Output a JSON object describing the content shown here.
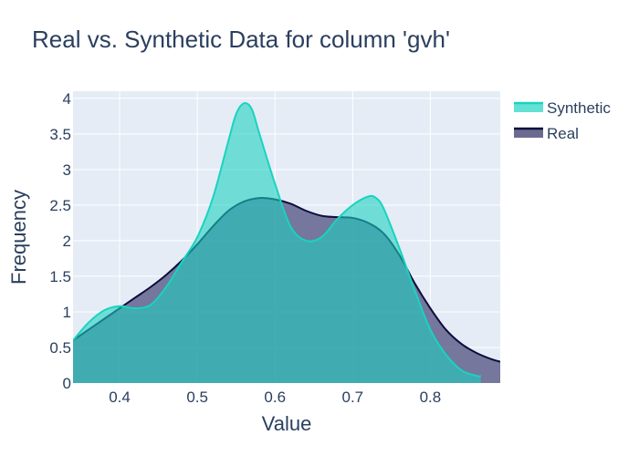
{
  "chart_data": {
    "type": "area",
    "title": "Real vs. Synthetic Data for column 'gvh'",
    "xlabel": "Value",
    "ylabel": "Frequency",
    "xlim": [
      0.34,
      0.89
    ],
    "ylim": [
      0,
      4.1
    ],
    "x_ticks": [
      {
        "value": 0.4,
        "label": "0.4"
      },
      {
        "value": 0.5,
        "label": "0.5"
      },
      {
        "value": 0.6,
        "label": "0.6"
      },
      {
        "value": 0.7,
        "label": "0.7"
      },
      {
        "value": 0.8,
        "label": "0.8"
      }
    ],
    "y_ticks": [
      {
        "value": 0,
        "label": "0"
      },
      {
        "value": 0.5,
        "label": "0.5"
      },
      {
        "value": 1,
        "label": "1"
      },
      {
        "value": 1.5,
        "label": "1.5"
      },
      {
        "value": 2,
        "label": "2"
      },
      {
        "value": 2.5,
        "label": "2.5"
      },
      {
        "value": 3,
        "label": "3"
      },
      {
        "value": 3.5,
        "label": "3.5"
      },
      {
        "value": 4,
        "label": "4"
      }
    ],
    "grid": true,
    "legend_position": "top-right",
    "series": [
      {
        "name": "Real",
        "line_color": "#0d0d3d",
        "fill_color": "#4a4a7a",
        "fill_opacity": 0.72,
        "x": [
          0.34,
          0.36,
          0.38,
          0.4,
          0.42,
          0.44,
          0.46,
          0.48,
          0.5,
          0.52,
          0.54,
          0.56,
          0.58,
          0.6,
          0.62,
          0.64,
          0.66,
          0.68,
          0.7,
          0.72,
          0.74,
          0.76,
          0.78,
          0.8,
          0.82,
          0.84,
          0.86,
          0.88,
          0.89
        ],
        "y": [
          0.6,
          0.75,
          0.9,
          1.05,
          1.2,
          1.35,
          1.52,
          1.72,
          1.95,
          2.2,
          2.42,
          2.55,
          2.6,
          2.58,
          2.52,
          2.42,
          2.35,
          2.33,
          2.32,
          2.25,
          2.1,
          1.8,
          1.4,
          1.05,
          0.75,
          0.55,
          0.42,
          0.33,
          0.3
        ]
      },
      {
        "name": "Synthetic",
        "line_color": "#19d3c0",
        "fill_color": "#19d3c0",
        "fill_opacity": 0.58,
        "x": [
          0.34,
          0.36,
          0.38,
          0.4,
          0.42,
          0.44,
          0.46,
          0.48,
          0.5,
          0.52,
          0.54,
          0.55,
          0.56,
          0.57,
          0.58,
          0.6,
          0.62,
          0.64,
          0.66,
          0.68,
          0.7,
          0.72,
          0.73,
          0.74,
          0.76,
          0.78,
          0.8,
          0.82,
          0.84,
          0.86,
          0.865
        ],
        "y": [
          0.6,
          0.85,
          1.02,
          1.08,
          1.05,
          1.1,
          1.35,
          1.7,
          2.05,
          2.6,
          3.4,
          3.78,
          3.93,
          3.85,
          3.5,
          2.8,
          2.2,
          2.0,
          2.05,
          2.3,
          2.5,
          2.62,
          2.6,
          2.45,
          1.9,
          1.3,
          0.75,
          0.4,
          0.18,
          0.1,
          0.1
        ]
      }
    ]
  }
}
